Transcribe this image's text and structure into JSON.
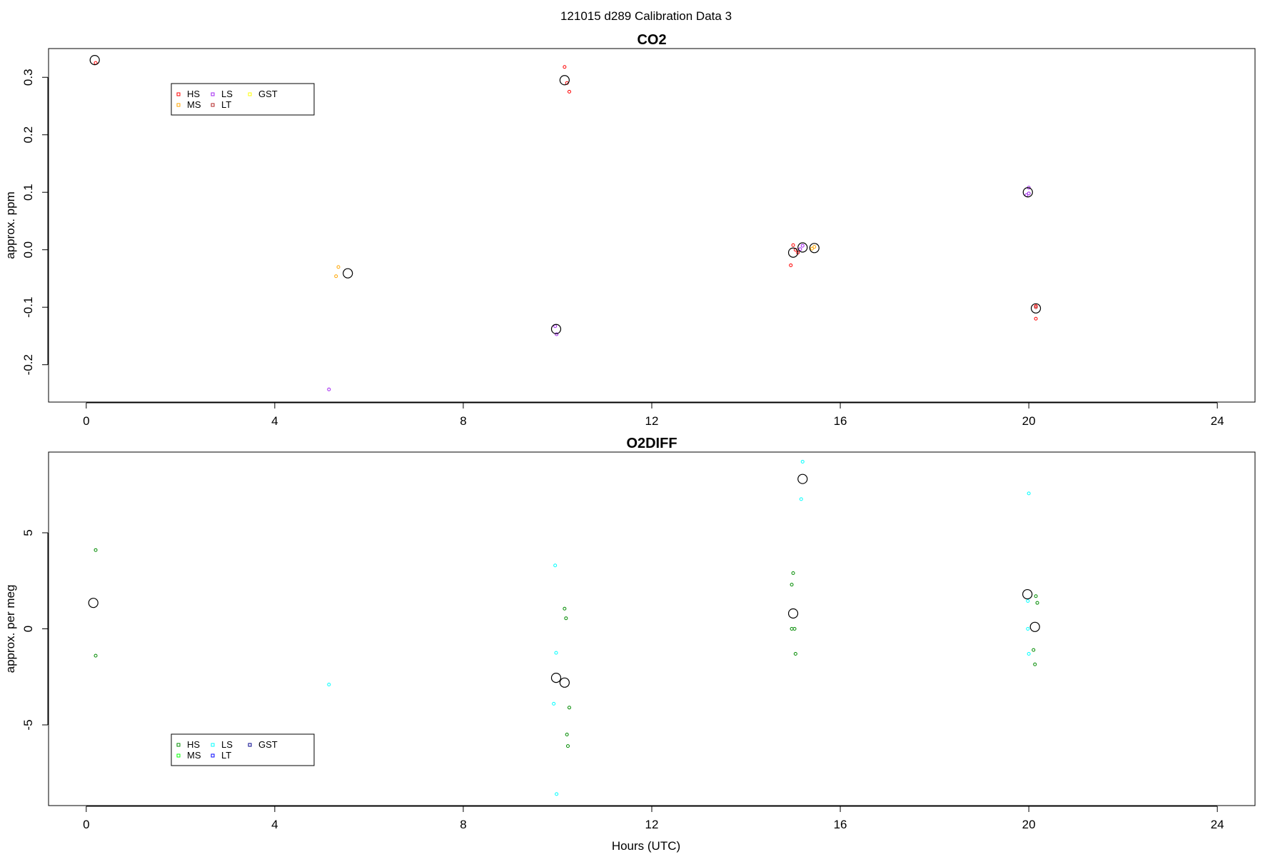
{
  "page_title": "121015   d289   Calibration Data 3",
  "chart_data": [
    {
      "type": "scatter",
      "title": "CO2",
      "xlabel": "",
      "ylabel": "approx. ppm",
      "xlim": [
        -0.8,
        24.8
      ],
      "ylim": [
        -0.265,
        0.35
      ],
      "xticks": [
        0,
        4,
        8,
        12,
        16,
        20,
        24
      ],
      "xtick_labels": [
        "0",
        "4",
        "8",
        "12",
        "16",
        "20",
        "24"
      ],
      "yticks": [
        -0.2,
        -0.1,
        0.0,
        0.1,
        0.2,
        0.3
      ],
      "ytick_labels": [
        "-0.2",
        "-0.1",
        "0.0",
        "0.1",
        "0.2",
        "0.3"
      ],
      "legend": {
        "position": "top-left",
        "entries": [
          {
            "name": "HS",
            "color": "#ff0000"
          },
          {
            "name": "MS",
            "color": "#ffa500"
          },
          {
            "name": "LS",
            "color": "#a020f0"
          },
          {
            "name": "LT",
            "color": "#b22222"
          },
          {
            "name": "GST",
            "color": "#ffff00"
          }
        ]
      },
      "series": [
        {
          "name": "HS",
          "color": "#ff0000",
          "x": [
            0.2,
            10.15,
            10.2,
            10.25,
            15.0,
            15.05,
            15.1,
            14.95,
            20.15,
            20.15
          ],
          "y": [
            0.325,
            0.318,
            0.29,
            0.275,
            0.008,
            0.0,
            -0.005,
            -0.027,
            -0.098,
            -0.12
          ]
        },
        {
          "name": "MS",
          "color": "#ffa500",
          "x": [
            5.35,
            5.3,
            15.45,
            15.4
          ],
          "y": [
            -0.03,
            -0.046,
            0.005,
            0.002
          ]
        },
        {
          "name": "LS",
          "color": "#a020f0",
          "x": [
            5.15,
            9.95,
            9.98,
            15.2,
            15.15,
            20.0,
            19.95,
            20.0
          ],
          "y": [
            -0.243,
            -0.133,
            -0.147,
            0.007,
            0.001,
            0.108,
            0.095,
            0.098
          ]
        },
        {
          "name": "LT",
          "color": "#b22222",
          "x": [
            20.15
          ],
          "y": [
            -0.1
          ]
        },
        {
          "name": "GST",
          "color": "#ffff00",
          "x": [],
          "y": []
        },
        {
          "name": "",
          "color": "#000000",
          "marker_size": "large",
          "x": [
            0.18,
            10.15,
            5.55,
            9.97,
            15.0,
            15.2,
            15.45,
            19.98,
            20.15
          ],
          "y": [
            0.33,
            0.295,
            -0.041,
            -0.138,
            -0.005,
            0.004,
            0.003,
            0.1,
            -0.102
          ]
        }
      ]
    },
    {
      "type": "scatter",
      "title": "O2DIFF",
      "xlabel": "Hours (UTC)",
      "ylabel": "approx. per meg",
      "xlim": [
        -0.8,
        24.8
      ],
      "ylim": [
        -9.2,
        9.2
      ],
      "xticks": [
        0,
        4,
        8,
        12,
        16,
        20,
        24
      ],
      "xtick_labels": [
        "0",
        "4",
        "8",
        "12",
        "16",
        "20",
        "24"
      ],
      "yticks": [
        -5,
        0,
        5
      ],
      "ytick_labels": [
        "-5",
        "0",
        "5"
      ],
      "legend": {
        "position": "bottom-left",
        "entries": [
          {
            "name": "HS",
            "color": "#008b00"
          },
          {
            "name": "MS",
            "color": "#00ff00"
          },
          {
            "name": "LS",
            "color": "#00ffff"
          },
          {
            "name": "LT",
            "color": "#0000ff"
          },
          {
            "name": "GST",
            "color": "#00008b"
          }
        ]
      },
      "series": [
        {
          "name": "HS",
          "color": "#008b00",
          "x": [
            0.2,
            0.2,
            10.15,
            10.18,
            10.25,
            10.2,
            10.22,
            15.0,
            14.97,
            14.97,
            15.03,
            15.05,
            20.15,
            20.18,
            20.1,
            20.13
          ],
          "y": [
            4.1,
            -1.4,
            1.05,
            0.55,
            -4.1,
            -5.5,
            -6.1,
            2.9,
            2.3,
            0.0,
            0.0,
            -1.3,
            1.7,
            1.35,
            -1.1,
            -1.85
          ]
        },
        {
          "name": "MS",
          "color": "#00ff00",
          "x": [],
          "y": []
        },
        {
          "name": "LS",
          "color": "#00ffff",
          "x": [
            5.15,
            9.95,
            9.97,
            9.92,
            9.98,
            15.2,
            15.17,
            20.0,
            19.98,
            19.98,
            20.0
          ],
          "y": [
            -2.9,
            3.3,
            -1.25,
            -3.9,
            -8.6,
            8.7,
            6.75,
            7.05,
            1.45,
            0.0,
            -1.3
          ]
        },
        {
          "name": "LT",
          "color": "#0000ff",
          "x": [],
          "y": []
        },
        {
          "name": "GST",
          "color": "#00008b",
          "x": [],
          "y": []
        },
        {
          "name": "",
          "color": "#000000",
          "marker_size": "large",
          "x": [
            0.15,
            9.97,
            10.15,
            15.0,
            15.2,
            19.97,
            20.13
          ],
          "y": [
            1.35,
            -2.55,
            -2.8,
            0.8,
            7.8,
            1.8,
            0.1
          ]
        }
      ]
    }
  ]
}
